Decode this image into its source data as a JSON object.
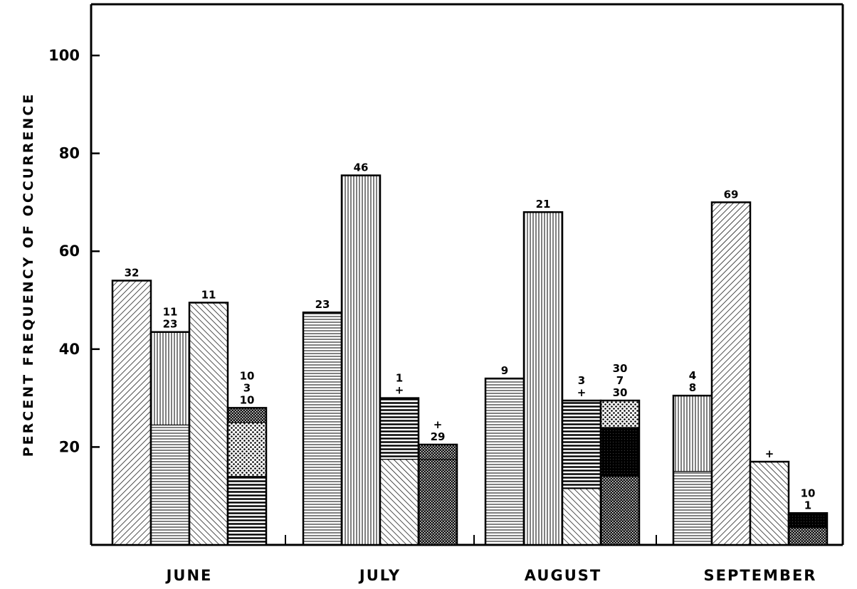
{
  "chart_data": {
    "type": "bar",
    "title": "",
    "ylabel": "PERCENT FREQUENCY OF OCCURRENCE",
    "xlabel": "",
    "ylim": [
      0,
      110
    ],
    "yticks": [
      "20",
      "40",
      "60",
      "80",
      "100"
    ],
    "grid": false,
    "legend": "none",
    "groups": [
      {
        "month": "JUNE",
        "bars": [
          {
            "total": 54,
            "labels": [
              "32"
            ],
            "segments": [
              {
                "value": 54,
                "pattern": "diag-back"
              }
            ]
          },
          {
            "total": 43.5,
            "labels": [
              "11",
              "23"
            ],
            "segments": [
              {
                "value": 24.5,
                "pattern": "horizontal"
              },
              {
                "value": 19,
                "pattern": "vertical"
              }
            ]
          },
          {
            "total": 49.5,
            "labels": [
              "11"
            ],
            "segments": [
              {
                "value": 49.5,
                "pattern": "diag-fwd"
              }
            ]
          },
          {
            "total": 28,
            "labels": [
              "10",
              "3",
              "10"
            ],
            "segments": [
              {
                "value": 14,
                "pattern": "horizontal-heavy"
              },
              {
                "value": 11,
                "pattern": "crosshatch"
              },
              {
                "value": 3,
                "pattern": "dense-check"
              }
            ]
          }
        ]
      },
      {
        "month": "JULY",
        "bars": [
          {
            "total": 47.5,
            "labels": [
              "23"
            ],
            "segments": [
              {
                "value": 47.5,
                "pattern": "horizontal"
              }
            ]
          },
          {
            "total": 75.5,
            "labels": [
              "46"
            ],
            "segments": [
              {
                "value": 75.5,
                "pattern": "vertical"
              }
            ]
          },
          {
            "total": 30,
            "labels": [
              "1",
              "+"
            ],
            "segments": [
              {
                "value": 17.5,
                "pattern": "diag-fwd"
              },
              {
                "value": 12.5,
                "pattern": "horizontal-heavy"
              }
            ]
          },
          {
            "total": 20.5,
            "labels": [
              "+",
              "29"
            ],
            "segments": [
              {
                "value": 17.5,
                "pattern": "dense-check"
              },
              {
                "value": 3,
                "pattern": "dense-check"
              }
            ]
          }
        ]
      },
      {
        "month": "AUGUST",
        "bars": [
          {
            "total": 34,
            "labels": [
              "9"
            ],
            "segments": [
              {
                "value": 34,
                "pattern": "horizontal"
              }
            ]
          },
          {
            "total": 68,
            "labels": [
              "21"
            ],
            "segments": [
              {
                "value": 68,
                "pattern": "vertical"
              }
            ]
          },
          {
            "total": 29.5,
            "labels": [
              "3",
              "+"
            ],
            "segments": [
              {
                "value": 11.5,
                "pattern": "diag-fwd"
              },
              {
                "value": 18,
                "pattern": "horizontal-heavy"
              }
            ]
          },
          {
            "total": 29.5,
            "labels": [
              "30",
              "7",
              "30"
            ],
            "segments": [
              {
                "value": 14,
                "pattern": "dense-check"
              },
              {
                "value": 10,
                "pattern": "solid-dark"
              },
              {
                "value": 5.5,
                "pattern": "crosshatch"
              }
            ]
          }
        ]
      },
      {
        "month": "SEPTEMBER",
        "bars": [
          {
            "total": 30.5,
            "labels": [
              "4",
              "8"
            ],
            "segments": [
              {
                "value": 15,
                "pattern": "horizontal"
              },
              {
                "value": 15.5,
                "pattern": "vertical"
              }
            ]
          },
          {
            "total": 70,
            "labels": [
              "69"
            ],
            "segments": [
              {
                "value": 70,
                "pattern": "diag-back"
              }
            ]
          },
          {
            "total": 17,
            "labels": [
              "+"
            ],
            "segments": [
              {
                "value": 17,
                "pattern": "diag-fwd"
              }
            ]
          },
          {
            "total": 6.5,
            "labels": [
              "10",
              "1"
            ],
            "segments": [
              {
                "value": 3.5,
                "pattern": "dense-check"
              },
              {
                "value": 3,
                "pattern": "solid-dark"
              }
            ]
          }
        ]
      }
    ]
  }
}
